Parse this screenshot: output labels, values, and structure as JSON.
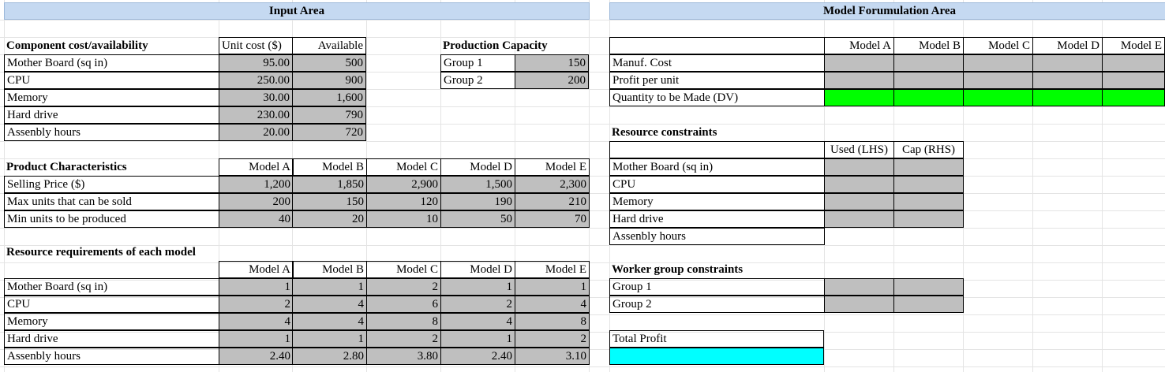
{
  "headers": {
    "input_area": "Input Area",
    "model_area": "Model Forumulation Area"
  },
  "component": {
    "title": "Component cost/availability",
    "col_cost": "Unit cost ($)",
    "col_avail": "Available",
    "rows": [
      {
        "name": "Mother Board (sq in)",
        "cost": "95.00",
        "avail": "500"
      },
      {
        "name": "CPU",
        "cost": "250.00",
        "avail": "900"
      },
      {
        "name": "Memory",
        "cost": "30.00",
        "avail": "1,600"
      },
      {
        "name": "Hard drive",
        "cost": "230.00",
        "avail": "790"
      },
      {
        "name": "Assenbly hours",
        "cost": "20.00",
        "avail": "720"
      }
    ]
  },
  "production": {
    "title": "Production Capacity",
    "rows": [
      {
        "name": "Group 1",
        "value": "150"
      },
      {
        "name": "Group 2",
        "value": "200"
      }
    ]
  },
  "product": {
    "title": "Product Characteristics",
    "models": [
      "Model A",
      "Model B",
      "Model C",
      "Model D",
      "Model E"
    ],
    "rows": [
      {
        "name": "Selling Price ($)",
        "values": [
          "1,200",
          "1,850",
          "2,900",
          "1,500",
          "2,300"
        ]
      },
      {
        "name": "Max units that can be sold",
        "values": [
          "200",
          "150",
          "120",
          "190",
          "210"
        ]
      },
      {
        "name": "Min units to be produced",
        "values": [
          "40",
          "20",
          "10",
          "50",
          "70"
        ]
      }
    ]
  },
  "resources": {
    "title": "Resource requirements of each model",
    "models": [
      "Model A",
      "Model B",
      "Model C",
      "Model D",
      "Model E"
    ],
    "rows": [
      {
        "name": "Mother Board (sq in)",
        "values": [
          "1",
          "1",
          "2",
          "1",
          "1"
        ]
      },
      {
        "name": "CPU",
        "values": [
          "2",
          "4",
          "6",
          "2",
          "4"
        ]
      },
      {
        "name": "Memory",
        "values": [
          "4",
          "4",
          "8",
          "4",
          "8"
        ]
      },
      {
        "name": "Hard drive",
        "values": [
          "1",
          "1",
          "2",
          "1",
          "2"
        ]
      },
      {
        "name": "Assenbly hours",
        "values": [
          "2.40",
          "2.80",
          "3.80",
          "2.40",
          "3.10"
        ]
      }
    ]
  },
  "model_area": {
    "models": [
      "Model A",
      "Model B",
      "Model C",
      "Model D",
      "Model E"
    ],
    "rows": [
      "Manuf. Cost",
      "Profit per unit",
      "Quantity to be Made (DV)"
    ]
  },
  "resource_constraints": {
    "title": "Resource constraints",
    "col_used": "Used (LHS)",
    "col_cap": "Cap (RHS)",
    "rows": [
      "Mother Board (sq in)",
      "CPU",
      "Memory",
      "Hard drive",
      "Assenbly hours"
    ]
  },
  "worker_constraints": {
    "title": "Worker group constraints",
    "rows": [
      "Group 1",
      "Group 2"
    ]
  },
  "total_profit": {
    "label": "Total Profit"
  },
  "colors": {
    "input_gray": "#bfbfbf",
    "decision_green": "#00ff00",
    "objective_cyan": "#00ffff",
    "header_blue": "#c5d9f1"
  }
}
